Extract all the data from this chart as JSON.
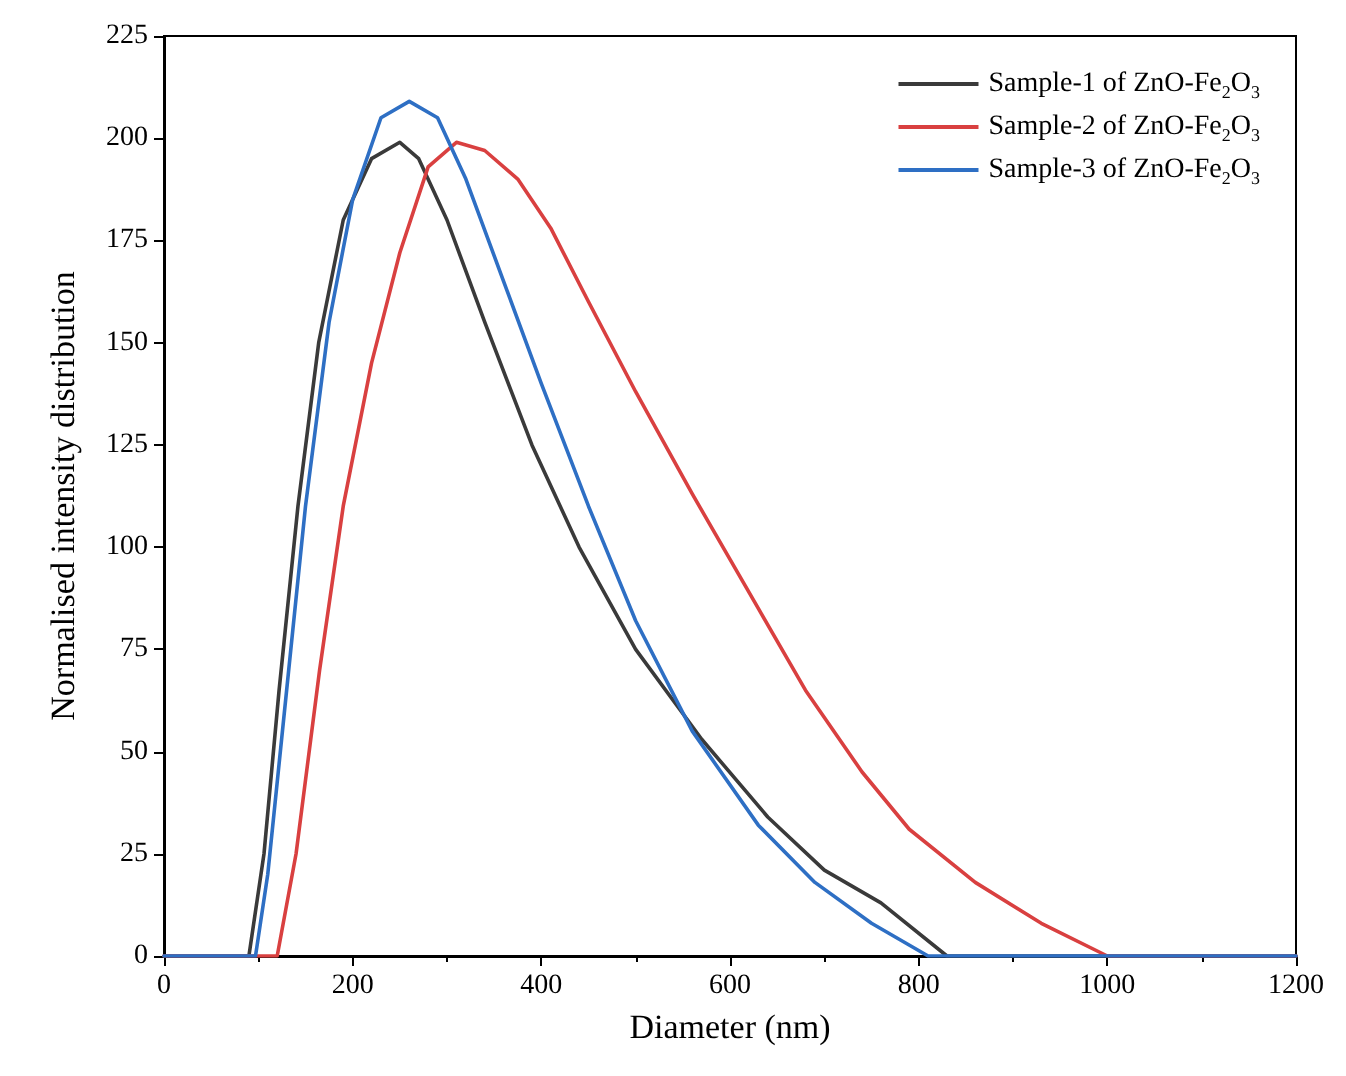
{
  "chart_data": {
    "type": "line",
    "xlabel": "Diameter (nm)",
    "ylabel": "Normalised intensity distribution",
    "xlim": [
      0,
      1200
    ],
    "xticks": [
      0,
      200,
      400,
      600,
      800,
      1000,
      1200
    ],
    "ylim": [
      0,
      225
    ],
    "yticks": [
      0,
      25,
      50,
      75,
      100,
      125,
      150,
      175,
      200,
      225
    ],
    "grid": false,
    "legend": "top right",
    "marker": "none",
    "line_style": "solid",
    "series": [
      {
        "name": "Sample-1 of ZnO-Fe$_{2}$O$_{3}$",
        "color": "#3a3a3a",
        "x": [
          0,
          90,
          106,
          122,
          142,
          164,
          190,
          220,
          250,
          270,
          300,
          340,
          390,
          440,
          500,
          570,
          640,
          700,
          760,
          830,
          1200
        ],
        "values": [
          0,
          0,
          25,
          65,
          110,
          150,
          180,
          195,
          199,
          195,
          180,
          155,
          125,
          100,
          75,
          53,
          34,
          21,
          13,
          0,
          0
        ]
      },
      {
        "name": "Sample-2 of ZnO-Fe$_{2}$O$_{3}$",
        "color": "#d94040",
        "x": [
          0,
          120,
          140,
          165,
          190,
          220,
          250,
          280,
          310,
          340,
          375,
          410,
          450,
          500,
          560,
          630,
          680,
          740,
          790,
          860,
          930,
          1000,
          1200
        ],
        "values": [
          0,
          0,
          25,
          70,
          110,
          145,
          172,
          193,
          199,
          197,
          190,
          178,
          160,
          138,
          113,
          85,
          65,
          45,
          31,
          18,
          8,
          0,
          0
        ]
      },
      {
        "name": "Sample-3 of ZnO-Fe$_{2}$O$_{3}$",
        "color": "#2e6fc4",
        "x": [
          0,
          97,
          110,
          130,
          150,
          175,
          200,
          230,
          260,
          290,
          320,
          360,
          400,
          450,
          500,
          560,
          630,
          690,
          750,
          810,
          1200
        ],
        "values": [
          0,
          0,
          20,
          65,
          110,
          155,
          185,
          205,
          209,
          205,
          190,
          165,
          140,
          110,
          82,
          55,
          32,
          18,
          8,
          0,
          0
        ]
      }
    ]
  }
}
